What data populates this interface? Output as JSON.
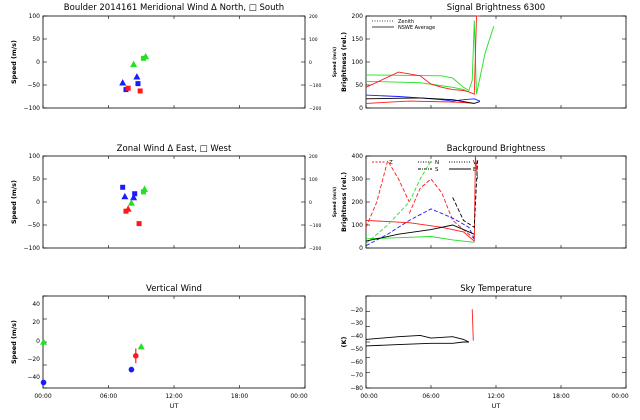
{
  "chart_data": [
    {
      "type": "scatter",
      "panel": "meridional_wind",
      "title": "Boulder   2014161    Meridional Wind   Δ North, □ South",
      "ylabel": "Speed (m/s)",
      "ylabel_right": "Speed (m/s)",
      "ylim": [
        -100,
        100
      ],
      "ylim_right": [
        -200,
        200
      ],
      "yticks": [
        "100",
        "50",
        "0",
        "−50",
        "−100"
      ],
      "yticks_right": [
        "200",
        "100",
        "0",
        "−100",
        "−200"
      ],
      "xlim": [
        0,
        24
      ],
      "series": [
        {
          "color": "#1a1aff",
          "x": [
            7.3,
            7.6,
            8.6,
            8.7
          ],
          "y": [
            -45,
            -60,
            -32,
            -47
          ],
          "markers": [
            "triangle",
            "square",
            "triangle",
            "square"
          ]
        },
        {
          "color": "#ff1a1a",
          "x": [
            7.8,
            8.9
          ],
          "y": [
            -57,
            -63
          ],
          "markers": [
            "square",
            "square"
          ]
        },
        {
          "color": "#22e022",
          "x": [
            8.3,
            9.2,
            9.4
          ],
          "y": [
            -5,
            8,
            12
          ],
          "markers": [
            "triangle",
            "square",
            "triangle"
          ]
        }
      ]
    },
    {
      "type": "scatter",
      "panel": "zonal_wind",
      "title": "Zonal Wind     Δ East, □ West",
      "ylabel": "Speed (m/s)",
      "ylabel_right": "Speed (m/s)",
      "ylim": [
        -100,
        100
      ],
      "ylim_right": [
        -200,
        200
      ],
      "yticks": [
        "100",
        "50",
        "0",
        "−50",
        "−100"
      ],
      "yticks_right": [
        "200",
        "100",
        "0",
        "−100",
        "−200"
      ],
      "xlim": [
        0,
        24
      ],
      "series": [
        {
          "color": "#1a1aff",
          "x": [
            7.3,
            7.5,
            8.3,
            8.4
          ],
          "y": [
            32,
            12,
            10,
            18
          ],
          "markers": [
            "square",
            "triangle",
            "triangle",
            "square"
          ]
        },
        {
          "color": "#ff1a1a",
          "x": [
            7.6,
            7.8,
            8.8
          ],
          "y": [
            -20,
            -15,
            -47
          ],
          "markers": [
            "square",
            "triangle",
            "square"
          ]
        },
        {
          "color": "#22e022",
          "x": [
            8.1,
            9.2,
            9.3
          ],
          "y": [
            -2,
            22,
            28
          ],
          "markers": [
            "triangle",
            "square",
            "triangle"
          ]
        }
      ]
    },
    {
      "type": "scatter",
      "panel": "vertical_wind",
      "title": "Vertical Wind",
      "ylabel": "Speed (m/s)",
      "ylim": [
        -50,
        50
      ],
      "yticks": [
        "40",
        "20",
        "0",
        "−20",
        "−40"
      ],
      "xlim": [
        0,
        24
      ],
      "xticks": [
        "00:00",
        "06:00",
        "12:00",
        "18:00",
        "00:00"
      ],
      "xlabel": "UT",
      "series": [
        {
          "color": "#22e022",
          "x": [
            0.05,
            9.0
          ],
          "y": [
            0,
            -5
          ],
          "err": [
            0,
            2
          ],
          "markers": [
            "triangle",
            "triangle"
          ]
        },
        {
          "color": "#ff1a1a",
          "x": [
            8.5
          ],
          "y": [
            -15
          ],
          "err": [
            8
          ],
          "markers": [
            "circle"
          ]
        },
        {
          "color": "#1a1aff",
          "x": [
            0.05,
            8.1
          ],
          "y": [
            -44,
            -30
          ],
          "err": [
            0,
            3
          ],
          "markers": [
            "circle",
            "circle"
          ]
        }
      ]
    },
    {
      "type": "line",
      "panel": "signal_brightness",
      "title": "Signal Brightness     6300",
      "ylabel": "Brightness (rel.)",
      "ylim": [
        0,
        200
      ],
      "yticks": [
        "200",
        "150",
        "100",
        "50",
        "0"
      ],
      "xlim": [
        0,
        24
      ],
      "legend": [
        "Zenith",
        "NSWE Average"
      ],
      "series": [
        {
          "color": "#22e022",
          "style": "solid",
          "x": [
            0,
            7,
            8,
            9,
            9.5,
            9.8,
            10,
            10.2,
            11,
            11.8
          ],
          "y": [
            72,
            70,
            65,
            45,
            38,
            60,
            190,
            30,
            120,
            178
          ]
        },
        {
          "color": "#22e022",
          "style": "solid",
          "x": [
            0,
            5,
            6.5,
            8,
            9,
            9.5
          ],
          "y": [
            58,
            55,
            50,
            45,
            40,
            35
          ]
        },
        {
          "color": "#ff1a1a",
          "style": "solid",
          "x": [
            0,
            3,
            5,
            6,
            7,
            8,
            9,
            9.5,
            10,
            10.2,
            10.5
          ],
          "y": [
            45,
            78,
            70,
            52,
            45,
            40,
            38,
            35,
            30,
            200,
            200
          ]
        },
        {
          "color": "#ff1a1a",
          "style": "solid",
          "x": [
            0,
            4,
            8,
            9,
            10
          ],
          "y": [
            10,
            15,
            13,
            12,
            10
          ]
        },
        {
          "color": "#1a1aff",
          "style": "solid",
          "x": [
            0,
            3,
            5,
            7,
            8,
            9,
            10,
            10.5
          ],
          "y": [
            28,
            25,
            22,
            18,
            15,
            18,
            20,
            15
          ]
        },
        {
          "color": "#000000",
          "style": "solid",
          "x": [
            0,
            5,
            8,
            9,
            10,
            10.5
          ],
          "y": [
            20,
            22,
            18,
            14,
            10,
            14
          ]
        }
      ]
    },
    {
      "type": "line",
      "panel": "background_brightness",
      "title": "Background Brightness",
      "ylabel": "Brightness (rel.)",
      "ylim": [
        0,
        400
      ],
      "yticks": [
        "400",
        "300",
        "200",
        "100",
        "0"
      ],
      "xlim": [
        0,
        24
      ],
      "legend": [
        "Z",
        "N",
        "S",
        "W",
        "E"
      ],
      "series": [
        {
          "color": "#ff1a1a",
          "style": "solid",
          "x": [
            0,
            4,
            7,
            9,
            10,
            10.1,
            10.3
          ],
          "y": [
            120,
            110,
            90,
            70,
            30,
            400,
            300
          ]
        },
        {
          "color": "#ff1a1a",
          "style": "dashed",
          "x": [
            0,
            1,
            2,
            3,
            4
          ],
          "y": [
            90,
            200,
            380,
            300,
            200
          ]
        },
        {
          "color": "#ff1a1a",
          "style": "dashed",
          "x": [
            4,
            5,
            6,
            7,
            8,
            9,
            10
          ],
          "y": [
            150,
            260,
            300,
            240,
            120,
            80,
            40
          ]
        },
        {
          "color": "#22e022",
          "style": "dashed",
          "x": [
            0,
            2,
            4,
            5,
            6
          ],
          "y": [
            20,
            100,
            200,
            300,
            380
          ]
        },
        {
          "color": "#22e022",
          "style": "solid",
          "x": [
            0,
            3,
            6,
            8,
            10
          ],
          "y": [
            40,
            45,
            50,
            35,
            25
          ]
        },
        {
          "color": "#1a1aff",
          "style": "dashed",
          "x": [
            0,
            2,
            4,
            6,
            8,
            9.5,
            10
          ],
          "y": [
            10,
            60,
            120,
            170,
            130,
            90,
            40
          ]
        },
        {
          "color": "#000000",
          "style": "solid",
          "x": [
            0,
            3,
            6,
            8,
            10
          ],
          "y": [
            30,
            60,
            80,
            100,
            60
          ]
        },
        {
          "color": "#000000",
          "style": "dashed",
          "x": [
            8,
            9,
            10,
            10.3
          ],
          "y": [
            220,
            120,
            90,
            380
          ]
        }
      ]
    },
    {
      "type": "line",
      "panel": "sky_temperature",
      "title": "Sky Temperature",
      "ylabel": "(K)",
      "ylim": [
        -80,
        -10
      ],
      "yticks": [
        "−20",
        "−30",
        "−40",
        "−50",
        "−60",
        "−70",
        "−80"
      ],
      "xlim": [
        0,
        24
      ],
      "xticks": [
        "00:00",
        "06:00",
        "12:00",
        "18:00",
        "00:00"
      ],
      "xlabel": "UT",
      "series": [
        {
          "color": "#000000",
          "style": "solid",
          "x": [
            0,
            3,
            5,
            6,
            8,
            9,
            9.5
          ],
          "y": [
            -43,
            -41,
            -40,
            -42,
            -41,
            -43,
            -45
          ]
        },
        {
          "color": "#000000",
          "style": "solid",
          "x": [
            0,
            3,
            6,
            8,
            9,
            9.5
          ],
          "y": [
            -48,
            -47,
            -46,
            -46,
            -45,
            -45
          ]
        },
        {
          "color": "#ff1a1a",
          "style": "solid",
          "x": [
            9.8,
            9.85,
            9.9
          ],
          "y": [
            -20,
            -30,
            -44
          ]
        }
      ]
    }
  ]
}
